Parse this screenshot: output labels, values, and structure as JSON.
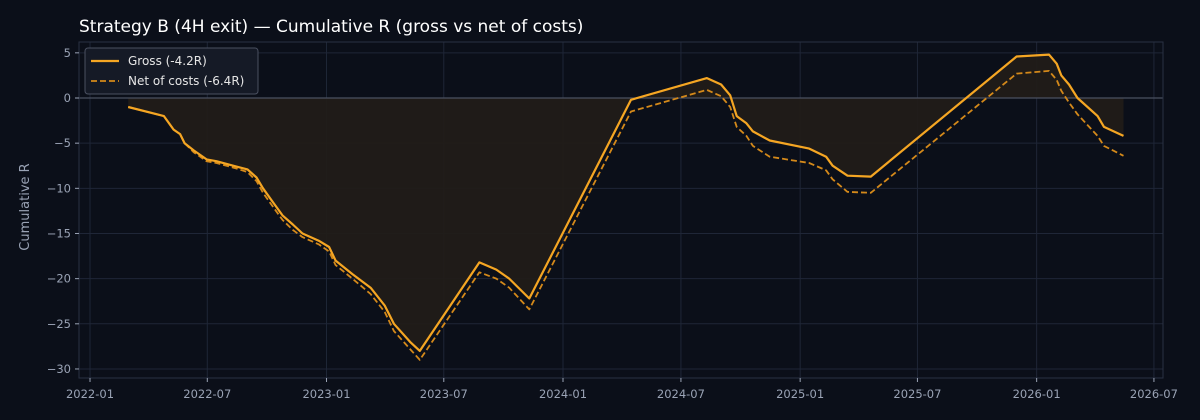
{
  "chart_data": {
    "type": "line",
    "title": "Strategy B (4H exit) — Cumulative R (gross vs net of costs)",
    "xlabel": "",
    "ylabel": "Cumulative R",
    "xlim": [
      "2021-12-15",
      "2026-07-15"
    ],
    "ylim": [
      -31,
      6.2
    ],
    "x_ticks": [
      "2022-01",
      "2022-07",
      "2023-01",
      "2023-07",
      "2024-01",
      "2024-07",
      "2025-01",
      "2025-07",
      "2026-01",
      "2026-07"
    ],
    "x_tick_dates": [
      "2022-01-01",
      "2022-07-01",
      "2023-01-01",
      "2023-07-01",
      "2024-01-01",
      "2024-07-01",
      "2025-01-01",
      "2025-07-01",
      "2026-01-01",
      "2026-07-01"
    ],
    "y_ticks": [
      5,
      0,
      -5,
      -10,
      -15,
      -20,
      -25,
      -30
    ],
    "y_tick_labels": [
      "5",
      "0",
      "−5",
      "−10",
      "−15",
      "−20",
      "−25",
      "−30"
    ],
    "grid": true,
    "zero_line": true,
    "legend_position": "top-left",
    "colors": {
      "gross": "#f5a623",
      "net": "#d4891a",
      "fill": "#211c18",
      "zero": "#4a5060"
    },
    "series": [
      {
        "name": "Gross (-4.2R)",
        "style": "solid",
        "points": [
          [
            "2022-03-01",
            -1.0
          ],
          [
            "2022-04-25",
            -2.0
          ],
          [
            "2022-05-10",
            -3.5
          ],
          [
            "2022-05-20",
            -4.0
          ],
          [
            "2022-05-27",
            -5.0
          ],
          [
            "2022-06-10",
            -5.8
          ],
          [
            "2022-06-30",
            -6.8
          ],
          [
            "2022-07-15",
            -7.0
          ],
          [
            "2022-08-15",
            -7.6
          ],
          [
            "2022-09-01",
            -7.9
          ],
          [
            "2022-09-15",
            -8.8
          ],
          [
            "2022-09-25",
            -10.0
          ],
          [
            "2022-10-10",
            -11.5
          ],
          [
            "2022-10-25",
            -13.0
          ],
          [
            "2022-11-10",
            -14.0
          ],
          [
            "2022-11-25",
            -15.0
          ],
          [
            "2022-12-20",
            -15.8
          ],
          [
            "2023-01-05",
            -16.5
          ],
          [
            "2023-01-15",
            -18.0
          ],
          [
            "2023-02-10",
            -19.5
          ],
          [
            "2023-03-10",
            -21.0
          ],
          [
            "2023-04-01",
            -23.0
          ],
          [
            "2023-04-15",
            -25.0
          ],
          [
            "2023-05-10",
            -27.0
          ],
          [
            "2023-05-25",
            -28.0
          ],
          [
            "2023-08-25",
            -18.2
          ],
          [
            "2023-09-20",
            -19.0
          ],
          [
            "2023-10-10",
            -20.0
          ],
          [
            "2023-11-10",
            -22.2
          ],
          [
            "2024-04-15",
            -0.2
          ],
          [
            "2024-08-10",
            2.2
          ],
          [
            "2024-09-01",
            1.5
          ],
          [
            "2024-09-15",
            0.3
          ],
          [
            "2024-09-25",
            -2.0
          ],
          [
            "2024-10-10",
            -2.8
          ],
          [
            "2024-10-20",
            -3.7
          ],
          [
            "2024-11-15",
            -4.7
          ],
          [
            "2025-01-15",
            -5.6
          ],
          [
            "2025-02-10",
            -6.5
          ],
          [
            "2025-02-20",
            -7.5
          ],
          [
            "2025-03-15",
            -8.6
          ],
          [
            "2025-04-20",
            -8.7
          ],
          [
            "2025-12-01",
            4.6
          ],
          [
            "2026-01-20",
            4.8
          ],
          [
            "2026-02-01",
            3.8
          ],
          [
            "2026-02-08",
            2.5
          ],
          [
            "2026-02-20",
            1.5
          ],
          [
            "2026-03-05",
            0.0
          ],
          [
            "2026-04-05",
            -2.0
          ],
          [
            "2026-04-15",
            -3.2
          ],
          [
            "2026-05-15",
            -4.2
          ]
        ]
      },
      {
        "name": "Net of costs (-6.4R)",
        "style": "dashed",
        "points": [
          [
            "2022-03-01",
            -1.0
          ],
          [
            "2022-04-25",
            -2.0
          ],
          [
            "2022-05-10",
            -3.5
          ],
          [
            "2022-05-20",
            -4.0
          ],
          [
            "2022-05-27",
            -5.0
          ],
          [
            "2022-06-10",
            -6.0
          ],
          [
            "2022-06-30",
            -7.0
          ],
          [
            "2022-07-15",
            -7.2
          ],
          [
            "2022-08-15",
            -7.8
          ],
          [
            "2022-09-01",
            -8.2
          ],
          [
            "2022-09-15",
            -9.2
          ],
          [
            "2022-09-25",
            -10.5
          ],
          [
            "2022-10-10",
            -12.0
          ],
          [
            "2022-10-25",
            -13.5
          ],
          [
            "2022-11-10",
            -14.6
          ],
          [
            "2022-11-25",
            -15.4
          ],
          [
            "2022-12-20",
            -16.2
          ],
          [
            "2023-01-05",
            -17.0
          ],
          [
            "2023-01-15",
            -18.5
          ],
          [
            "2023-02-10",
            -20.0
          ],
          [
            "2023-03-10",
            -21.7
          ],
          [
            "2023-04-01",
            -23.7
          ],
          [
            "2023-04-15",
            -25.8
          ],
          [
            "2023-05-10",
            -27.8
          ],
          [
            "2023-05-25",
            -29.0
          ],
          [
            "2023-08-25",
            -19.3
          ],
          [
            "2023-09-20",
            -20.0
          ],
          [
            "2023-10-10",
            -21.0
          ],
          [
            "2023-11-10",
            -23.4
          ],
          [
            "2024-04-15",
            -1.5
          ],
          [
            "2024-08-10",
            0.9
          ],
          [
            "2024-09-01",
            0.2
          ],
          [
            "2024-09-15",
            -1.0
          ],
          [
            "2024-09-25",
            -3.2
          ],
          [
            "2024-10-10",
            -4.2
          ],
          [
            "2024-10-20",
            -5.3
          ],
          [
            "2024-11-15",
            -6.5
          ],
          [
            "2025-01-15",
            -7.2
          ],
          [
            "2025-02-10",
            -8.0
          ],
          [
            "2025-02-20",
            -9.0
          ],
          [
            "2025-03-15",
            -10.4
          ],
          [
            "2025-04-20",
            -10.5
          ],
          [
            "2025-12-01",
            2.7
          ],
          [
            "2026-01-20",
            3.0
          ],
          [
            "2026-02-01",
            2.0
          ],
          [
            "2026-02-08",
            0.8
          ],
          [
            "2026-02-20",
            -0.5
          ],
          [
            "2026-03-05",
            -1.8
          ],
          [
            "2026-04-05",
            -4.2
          ],
          [
            "2026-04-15",
            -5.3
          ],
          [
            "2026-05-15",
            -6.4
          ]
        ]
      }
    ]
  }
}
